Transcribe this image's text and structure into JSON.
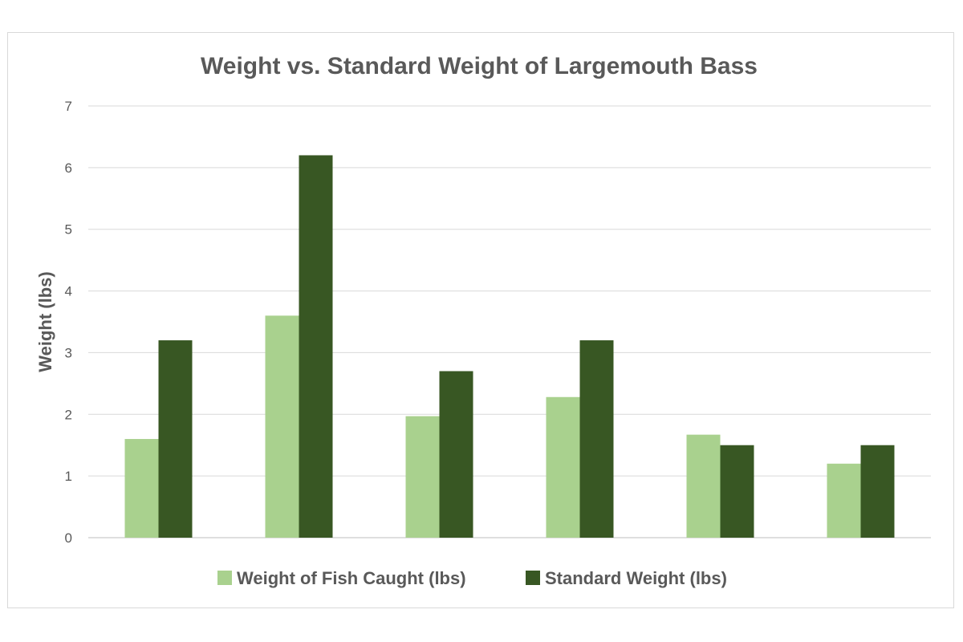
{
  "chart_data": {
    "type": "bar",
    "title": "Weight vs. Standard Weight of Largemouth Bass",
    "xlabel": "",
    "ylabel": "Weight (lbs)",
    "ylim": [
      0,
      7
    ],
    "yticks": [
      "0",
      "1",
      "2",
      "3",
      "4",
      "5",
      "6",
      "7"
    ],
    "grid": true,
    "legend_position": "bottom",
    "categories": [
      "",
      "",
      "",
      "",
      "",
      ""
    ],
    "series": [
      {
        "name": "Weight of Fish Caught (lbs)",
        "color": "#a9d18e",
        "values": [
          1.6,
          3.6,
          1.97,
          2.28,
          1.67,
          1.2
        ]
      },
      {
        "name": "Standard Weight (lbs)",
        "color": "#385723",
        "values": [
          3.2,
          6.2,
          2.7,
          3.2,
          1.5,
          1.5
        ]
      }
    ]
  }
}
